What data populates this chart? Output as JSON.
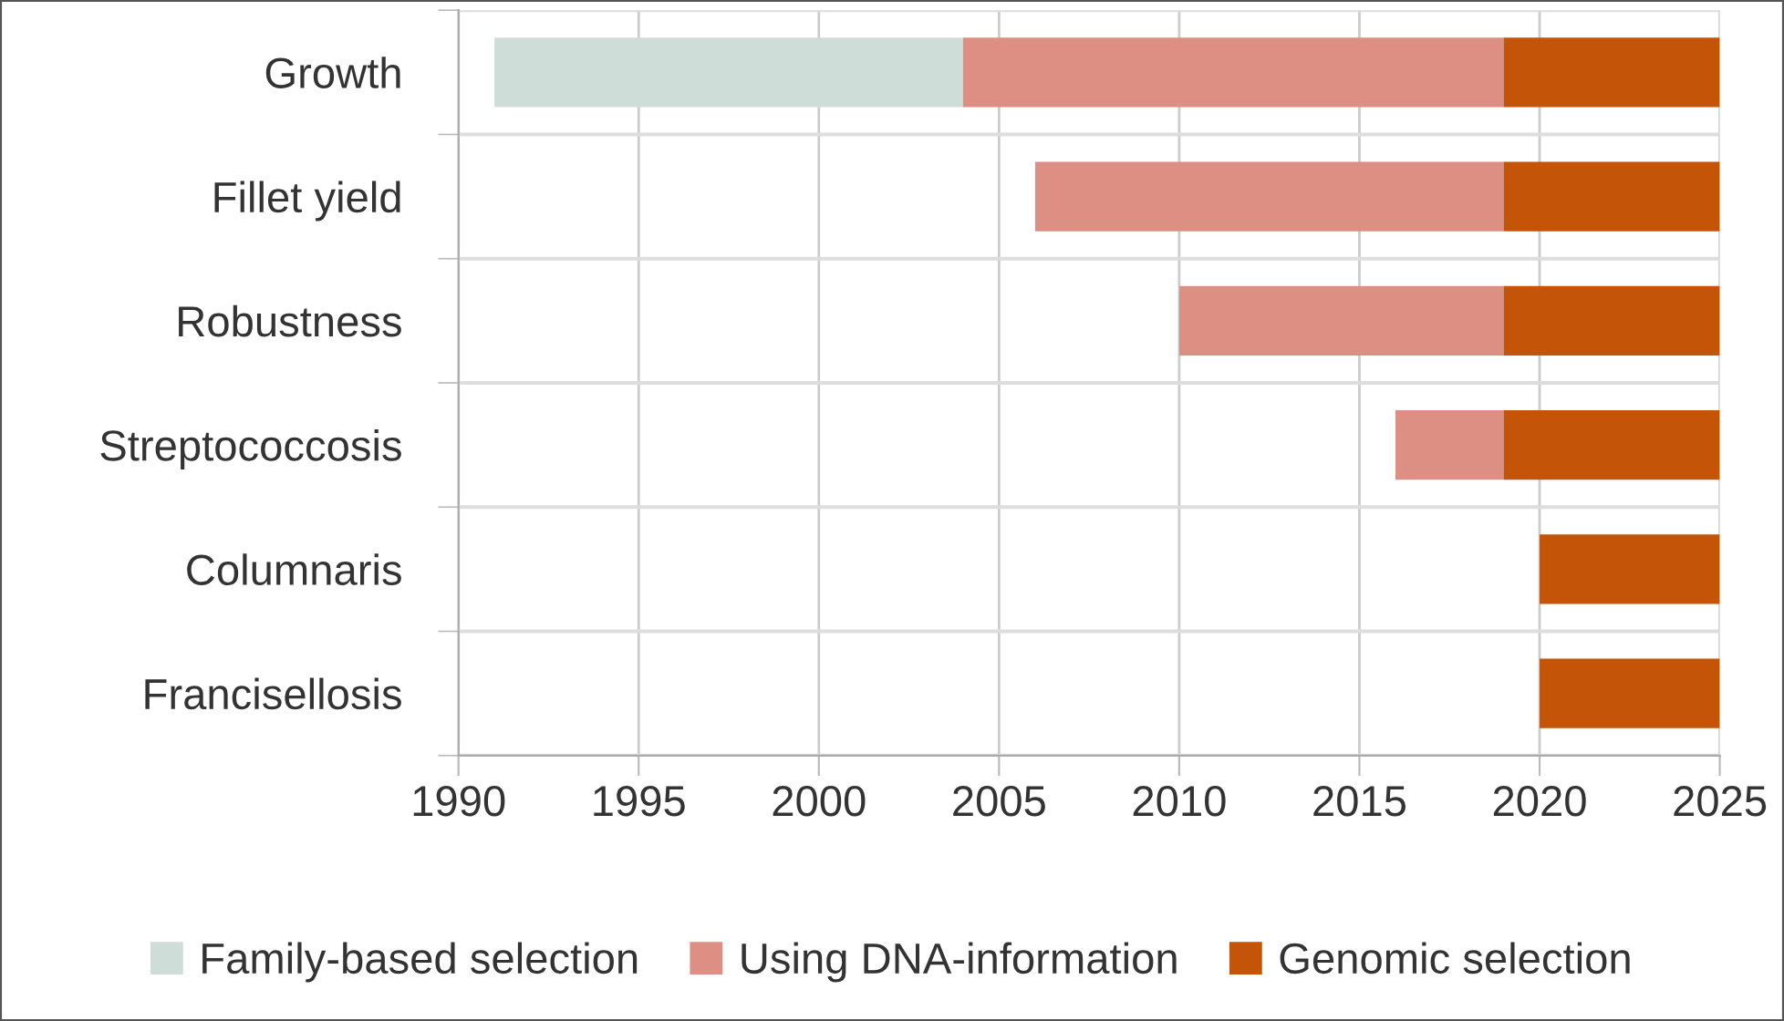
{
  "chart_data": {
    "type": "bar",
    "orientation": "horizontal",
    "categories": [
      "Growth",
      "Fillet yield",
      "Robustness",
      "Streptococcosis",
      "Columnaris",
      "Francisellosis"
    ],
    "series": [
      {
        "name": "Family-based selection",
        "color": "#cfddd8",
        "base": [
          1991,
          null,
          null,
          null,
          null,
          null
        ],
        "values": [
          13,
          null,
          null,
          null,
          null,
          null
        ]
      },
      {
        "name": "Using DNA-information",
        "color": "#de8f83",
        "base": [
          2004,
          2006,
          2010,
          2016,
          null,
          null
        ],
        "values": [
          15,
          13,
          9,
          3,
          null,
          null
        ]
      },
      {
        "name": "Genomic selection",
        "color": "#c45508",
        "base": [
          2019,
          2019,
          2019,
          2019,
          2020,
          2020
        ],
        "values": [
          6,
          6,
          6,
          6,
          5,
          5
        ]
      }
    ],
    "xlim": [
      1990,
      2025
    ],
    "xticks": [
      1990,
      1995,
      2000,
      2005,
      2010,
      2015,
      2020,
      2025
    ],
    "grid": true,
    "legend": "bottom"
  }
}
